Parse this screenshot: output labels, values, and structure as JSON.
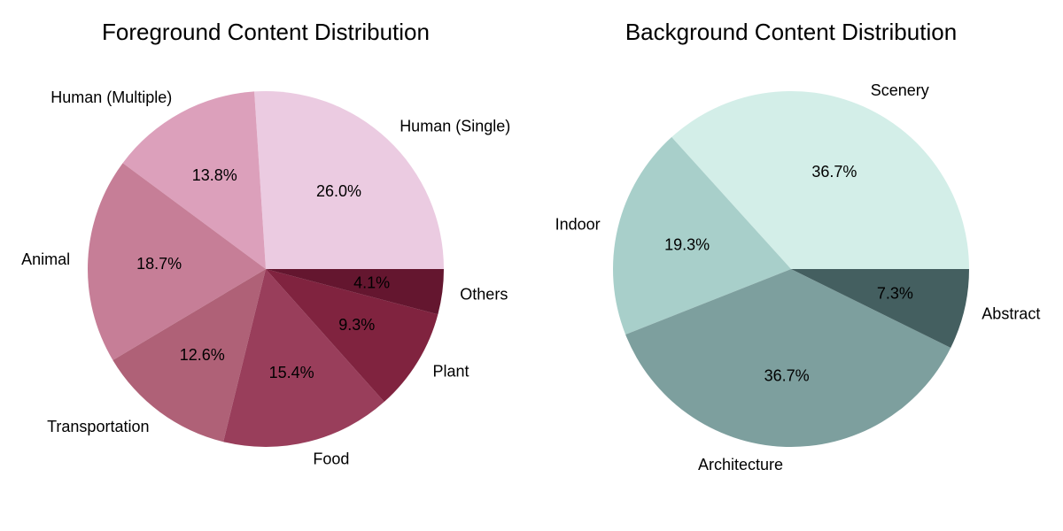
{
  "chart_data": [
    {
      "type": "pie",
      "title": "Foreground Content Distribution",
      "categories": [
        "Human (Single)",
        "Human (Multiple)",
        "Animal",
        "Transportation",
        "Food",
        "Plant",
        "Others"
      ],
      "values": [
        26.0,
        13.8,
        18.7,
        12.6,
        15.4,
        9.3,
        4.1
      ],
      "value_labels": [
        "26.0%",
        "13.8%",
        "18.7%",
        "12.6%",
        "15.4%",
        "9.3%",
        "4.1%"
      ],
      "colors": [
        "#ebcbe1",
        "#dca0bb",
        "#c67e97",
        "#af6177",
        "#993e5b",
        "#80233f",
        "#64162f"
      ],
      "start_angle_deg": 0,
      "direction": "counterclockwise"
    },
    {
      "type": "pie",
      "title": "Background Content Distribution",
      "categories": [
        "Scenery",
        "Indoor",
        "Architecture",
        "Abstract"
      ],
      "values": [
        36.7,
        19.3,
        36.7,
        7.3
      ],
      "value_labels": [
        "36.7%",
        "19.3%",
        "36.7%",
        "7.3%"
      ],
      "colors": [
        "#d3eee8",
        "#a8cfca",
        "#7d9f9e",
        "#445f60"
      ],
      "start_angle_deg": 0,
      "direction": "counterclockwise"
    }
  ]
}
